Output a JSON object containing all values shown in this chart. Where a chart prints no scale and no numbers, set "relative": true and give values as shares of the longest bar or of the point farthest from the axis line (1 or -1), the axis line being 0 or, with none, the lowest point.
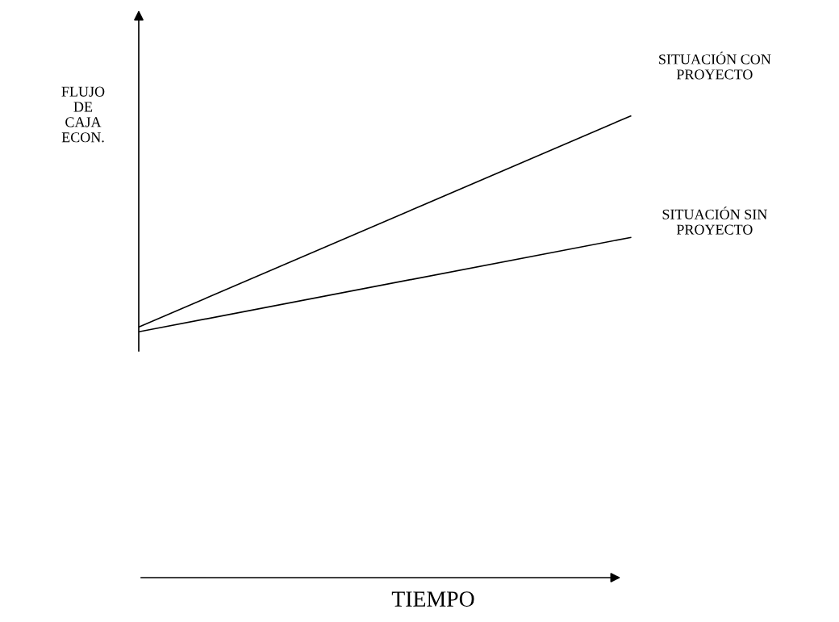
{
  "chart_data": {
    "type": "line",
    "relative": true,
    "categories": [
      null,
      null
    ],
    "annotations": [
      "TIEMPO"
    ],
    "ylabel": "FLUJO\nDE\nCAJA\nECON.",
    "grid": false,
    "legend": false,
    "marker": "none",
    "line_style": "solid",
    "series": [
      {
        "name": "SITUACIÓN CON\nPROYECTO",
        "color": "#000000",
        "values": [
          0.022,
          1
        ]
      },
      {
        "name": "SITUACIÓN SIN\nPROYECTO",
        "color": "#000000",
        "values": [
          0,
          0.437
        ]
      }
    ]
  }
}
